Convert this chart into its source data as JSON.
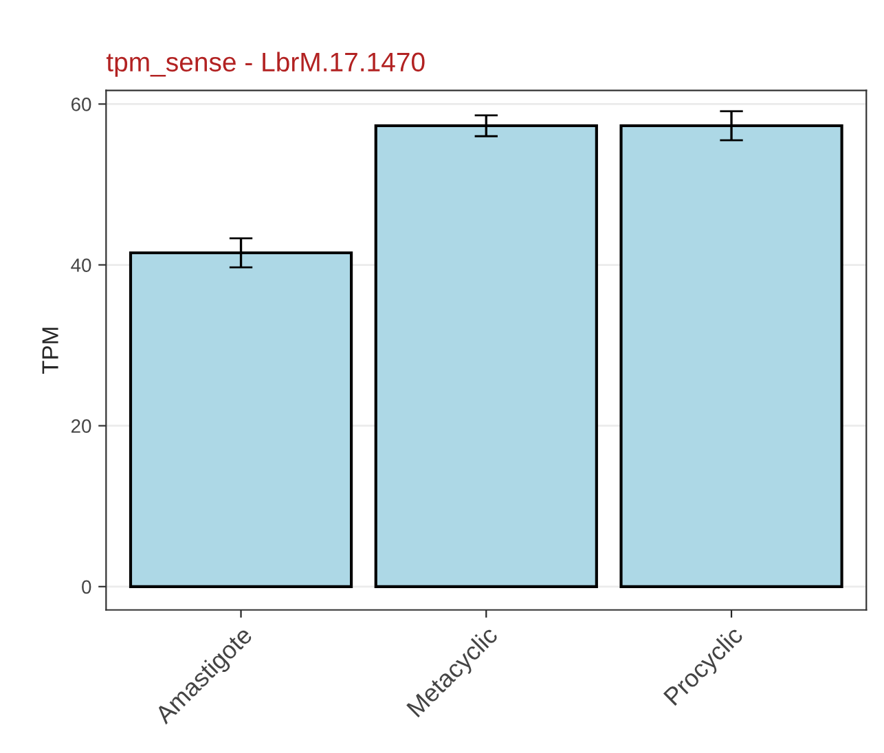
{
  "chart_data": {
    "type": "bar",
    "title": "tpm_sense - LbrM.17.1470",
    "ylabel": "TPM",
    "categories": [
      "Amastigote",
      "Metacyclic",
      "Procyclic"
    ],
    "values": [
      41.5,
      57.3,
      57.3
    ],
    "errors": [
      1.8,
      1.3,
      1.8
    ],
    "color": "#add8e6",
    "ylim": [
      -2.9,
      61.7
    ],
    "yticks": [
      0,
      20,
      40,
      60
    ],
    "grid": true
  }
}
